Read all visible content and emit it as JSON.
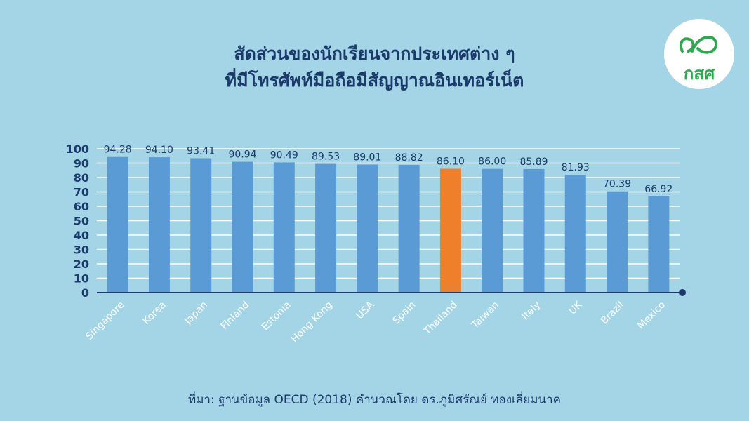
{
  "title_line1": "สัดส่วนของนักเรียนจากประเทศต่าง ๆ",
  "title_line2": "ที่มีโทรศัพท์มือถือมีสัญญาณอินเทอร์เน็ต",
  "logo_text": "กสศ",
  "source": "ที่มา: ฐานข้อมูล OECD (2018) คำนวณโดย ดร.ภูมิศรัณย์ ทองเลี่ยมนาค",
  "colors": {
    "background": "#a3d5e6",
    "bar": "#5b9bd5",
    "highlight": "#f07f2c",
    "text": "#1b3a6b",
    "logo_green": "#2fa84f"
  },
  "chart_data": {
    "type": "bar",
    "categories": [
      "Singapore",
      "Korea",
      "Japan",
      "Finland",
      "Estonia",
      "Hong Kong",
      "USA",
      "Spain",
      "Thailand",
      "Taiwan",
      "Italy",
      "UK",
      "Brazil",
      "Mexico"
    ],
    "values": [
      94.28,
      94.1,
      93.41,
      90.94,
      90.49,
      89.53,
      89.01,
      88.82,
      86.1,
      86.0,
      85.89,
      81.93,
      70.39,
      66.92
    ],
    "value_labels": [
      "94.28",
      "94.10",
      "93.41",
      "90.94",
      "90.49",
      "89.53",
      "89.01",
      "88.82",
      "86.10",
      "86.00",
      "85.89",
      "81.93",
      "70.39",
      "66.92"
    ],
    "highlight": "Thailand",
    "ylim": [
      0,
      100
    ],
    "yticks": [
      0,
      10,
      20,
      30,
      40,
      50,
      60,
      70,
      80,
      90,
      100
    ],
    "grid": true,
    "xlabel": "",
    "ylabel": ""
  }
}
